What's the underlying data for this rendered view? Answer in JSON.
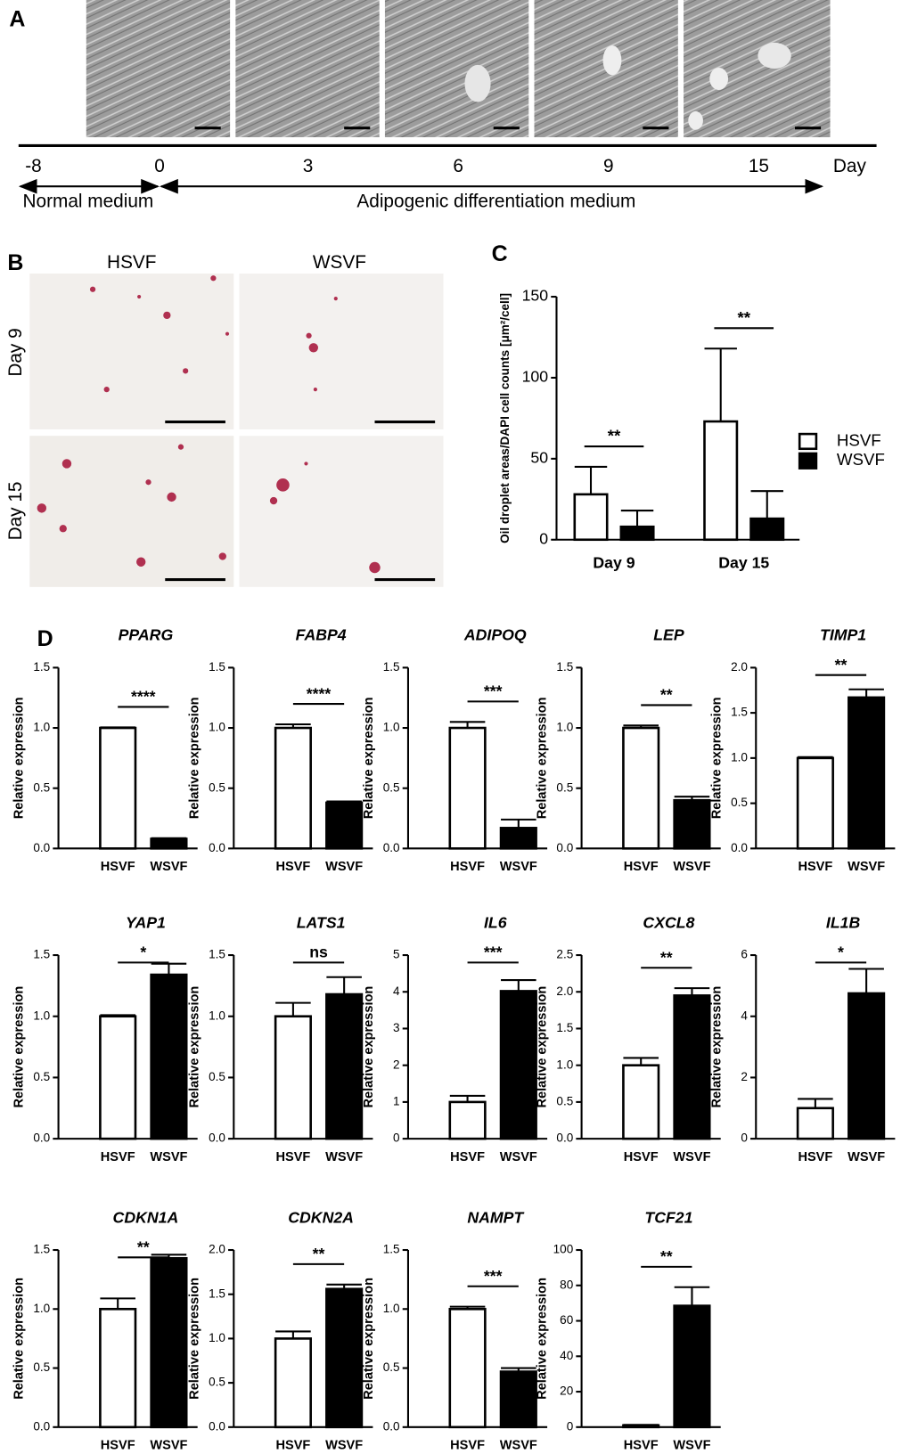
{
  "panel_labels": [
    "A",
    "B",
    "C",
    "D"
  ],
  "timeline": {
    "days": [
      -8,
      0,
      3,
      6,
      9,
      15
    ],
    "unit": "Day",
    "phases": [
      "Normal medium",
      "Adipogenic differentiation medium"
    ]
  },
  "staining": {
    "columns": [
      "HSVF",
      "WSVF"
    ],
    "rows": [
      "Day 9",
      "Day 15"
    ]
  },
  "chart_data": [
    {
      "type": "bar",
      "y_label": "Oil droplet areas/DAPI cell counts [μm²/cell]",
      "categories": [
        "Day 9",
        "Day 15"
      ],
      "series": [
        {
          "name": "HSVF",
          "color": "#ffffff",
          "values": [
            28,
            73
          ],
          "errors": [
            17,
            45
          ]
        },
        {
          "name": "WSVF",
          "color": "#000000",
          "values": [
            8,
            13
          ],
          "errors": [
            10,
            17
          ]
        }
      ],
      "ylim": [
        0,
        150
      ],
      "yticks": [
        0,
        50,
        100,
        150
      ],
      "annotations": [
        "**",
        "**"
      ],
      "legend": "right"
    },
    {
      "type": "bar",
      "title": "PPARG",
      "y_label": "Relative expression",
      "categories": [
        "HSVF",
        "WSVF"
      ],
      "colors": [
        "#ffffff",
        "#000000"
      ],
      "values": [
        1.0,
        0.08
      ],
      "errors": [
        0.005,
        0.005
      ],
      "ylim": [
        0,
        1.5
      ],
      "yticks": [
        {
          "value": 0,
          "label": "0.0"
        },
        {
          "value": 0.5,
          "label": "0.5"
        },
        {
          "value": 1,
          "label": "1.0"
        },
        {
          "value": 1.5,
          "label": "1.5"
        }
      ],
      "annotation": "****"
    },
    {
      "type": "bar",
      "title": "FABP4",
      "y_label": "Relative expression",
      "categories": [
        "HSVF",
        "WSVF"
      ],
      "colors": [
        "#ffffff",
        "#000000"
      ],
      "values": [
        1.0,
        0.38
      ],
      "errors": [
        0.03,
        0.01
      ],
      "ylim": [
        0,
        1.5
      ],
      "yticks": [
        {
          "value": 0,
          "label": "0.0"
        },
        {
          "value": 0.5,
          "label": "0.5"
        },
        {
          "value": 1,
          "label": "1.0"
        },
        {
          "value": 1.5,
          "label": "1.5"
        }
      ],
      "annotation": "****"
    },
    {
      "type": "bar",
      "title": "ADIPOQ",
      "y_label": "Relative expression",
      "categories": [
        "HSVF",
        "WSVF"
      ],
      "colors": [
        "#ffffff",
        "#000000"
      ],
      "values": [
        1.0,
        0.17
      ],
      "errors": [
        0.05,
        0.07
      ],
      "ylim": [
        0,
        1.5
      ],
      "yticks": [
        {
          "value": 0,
          "label": "0.0"
        },
        {
          "value": 0.5,
          "label": "0.5"
        },
        {
          "value": 1,
          "label": "1.0"
        },
        {
          "value": 1.5,
          "label": "1.5"
        }
      ],
      "annotation": "***"
    },
    {
      "type": "bar",
      "title": "LEP",
      "y_label": "Relative expression",
      "categories": [
        "HSVF",
        "WSVF"
      ],
      "colors": [
        "#ffffff",
        "#000000"
      ],
      "values": [
        1.0,
        0.4
      ],
      "errors": [
        0.02,
        0.03
      ],
      "ylim": [
        0,
        1.5
      ],
      "yticks": [
        {
          "value": 0,
          "label": "0.0"
        },
        {
          "value": 0.5,
          "label": "0.5"
        },
        {
          "value": 1,
          "label": "1.0"
        },
        {
          "value": 1.5,
          "label": "1.5"
        }
      ],
      "annotation": "**"
    },
    {
      "type": "bar",
      "title": "TIMP1",
      "y_label": "Relative expression",
      "categories": [
        "HSVF",
        "WSVF"
      ],
      "colors": [
        "#ffffff",
        "#000000"
      ],
      "values": [
        1.0,
        1.67
      ],
      "errors": [
        0.01,
        0.09
      ],
      "ylim": [
        0,
        2
      ],
      "yticks": [
        {
          "value": 0,
          "label": "0.0"
        },
        {
          "value": 0.5,
          "label": "0.5"
        },
        {
          "value": 1,
          "label": "1.0"
        },
        {
          "value": 1.5,
          "label": "1.5"
        },
        {
          "value": 2,
          "label": "2.0"
        }
      ],
      "annotation": "**"
    },
    {
      "type": "bar",
      "title": "YAP1",
      "y_label": "Relative expression",
      "categories": [
        "HSVF",
        "WSVF"
      ],
      "colors": [
        "#ffffff",
        "#000000"
      ],
      "values": [
        1.0,
        1.34
      ],
      "errors": [
        0.01,
        0.09
      ],
      "ylim": [
        0,
        1.5
      ],
      "yticks": [
        {
          "value": 0,
          "label": "0.0"
        },
        {
          "value": 0.5,
          "label": "0.5"
        },
        {
          "value": 1,
          "label": "1.0"
        },
        {
          "value": 1.5,
          "label": "1.5"
        }
      ],
      "annotation": "*"
    },
    {
      "type": "bar",
      "title": "LATS1",
      "y_label": "Relative expression",
      "categories": [
        "HSVF",
        "WSVF"
      ],
      "colors": [
        "#ffffff",
        "#000000"
      ],
      "values": [
        1.0,
        1.18
      ],
      "errors": [
        0.11,
        0.14
      ],
      "ylim": [
        0,
        1.5
      ],
      "yticks": [
        {
          "value": 0,
          "label": "0.0"
        },
        {
          "value": 0.5,
          "label": "0.5"
        },
        {
          "value": 1,
          "label": "1.0"
        },
        {
          "value": 1.5,
          "label": "1.5"
        }
      ],
      "annotation": "ns"
    },
    {
      "type": "bar",
      "title": "IL6",
      "y_label": "Relative expression",
      "categories": [
        "HSVF",
        "WSVF"
      ],
      "colors": [
        "#ffffff",
        "#000000"
      ],
      "values": [
        1.0,
        4.02
      ],
      "errors": [
        0.17,
        0.3
      ],
      "ylim": [
        0,
        5
      ],
      "yticks": [
        0,
        1,
        2,
        3,
        4,
        5
      ],
      "annotation": "***"
    },
    {
      "type": "bar",
      "title": "CXCL8",
      "y_label": "Relative expression",
      "categories": [
        "HSVF",
        "WSVF"
      ],
      "colors": [
        "#ffffff",
        "#000000"
      ],
      "values": [
        1.0,
        1.95
      ],
      "errors": [
        0.1,
        0.1
      ],
      "ylim": [
        0,
        2.5
      ],
      "yticks": [
        {
          "value": 0,
          "label": "0.0"
        },
        {
          "value": 0.5,
          "label": "0.5"
        },
        {
          "value": 1,
          "label": "1.0"
        },
        {
          "value": 1.5,
          "label": "1.5"
        },
        {
          "value": 2,
          "label": "2.0"
        },
        {
          "value": 2.5,
          "label": "2.5"
        }
      ],
      "annotation": "**"
    },
    {
      "type": "bar",
      "title": "IL1B",
      "y_label": "Relative expression",
      "categories": [
        "HSVF",
        "WSVF"
      ],
      "colors": [
        "#ffffff",
        "#000000"
      ],
      "values": [
        1.0,
        4.75
      ],
      "errors": [
        0.3,
        0.8
      ],
      "ylim": [
        0,
        6
      ],
      "yticks": [
        0,
        2,
        4,
        6
      ],
      "annotation": "*"
    },
    {
      "type": "bar",
      "title": "CDKN1A",
      "y_label": "Relative expression",
      "categories": [
        "HSVF",
        "WSVF"
      ],
      "colors": [
        "#ffffff",
        "#000000"
      ],
      "values": [
        1.0,
        1.43
      ],
      "errors": [
        0.09,
        0.03
      ],
      "ylim": [
        0,
        1.5
      ],
      "yticks": [
        {
          "value": 0,
          "label": "0.0"
        },
        {
          "value": 0.5,
          "label": "0.5"
        },
        {
          "value": 1,
          "label": "1.0"
        },
        {
          "value": 1.5,
          "label": "1.5"
        }
      ],
      "annotation": "**"
    },
    {
      "type": "bar",
      "title": "CDKN2A",
      "y_label": "Relative expression",
      "categories": [
        "HSVF",
        "WSVF"
      ],
      "colors": [
        "#ffffff",
        "#000000"
      ],
      "values": [
        1.0,
        1.56
      ],
      "errors": [
        0.08,
        0.05
      ],
      "ylim": [
        0,
        2
      ],
      "yticks": [
        {
          "value": 0,
          "label": "0.0"
        },
        {
          "value": 0.5,
          "label": "0.5"
        },
        {
          "value": 1,
          "label": "1.0"
        },
        {
          "value": 1.5,
          "label": "1.5"
        },
        {
          "value": 2,
          "label": "2.0"
        }
      ],
      "annotation": "**"
    },
    {
      "type": "bar",
      "title": "NAMPT",
      "y_label": "Relative expression",
      "categories": [
        "HSVF",
        "WSVF"
      ],
      "colors": [
        "#ffffff",
        "#000000"
      ],
      "values": [
        1.0,
        0.47
      ],
      "errors": [
        0.02,
        0.03
      ],
      "ylim": [
        0,
        1.5
      ],
      "yticks": [
        {
          "value": 0,
          "label": "0.0"
        },
        {
          "value": 0.5,
          "label": "0.5"
        },
        {
          "value": 1,
          "label": "1.0"
        },
        {
          "value": 1.5,
          "label": "1.5"
        }
      ],
      "annotation": "***"
    },
    {
      "type": "bar",
      "title": "TCF21",
      "y_label": "Relative expression",
      "categories": [
        "HSVF",
        "WSVF"
      ],
      "colors": [
        "#ffffff",
        "#000000"
      ],
      "values": [
        1.0,
        68.5
      ],
      "errors": [
        0.3,
        10.5
      ],
      "ylim": [
        0,
        100
      ],
      "yticks": [
        0,
        20,
        40,
        60,
        80,
        100
      ],
      "annotation": "**"
    }
  ]
}
